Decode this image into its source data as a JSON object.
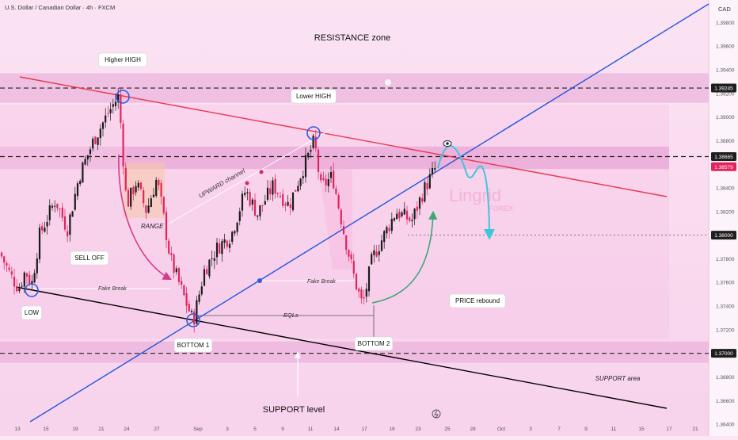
{
  "header": {
    "symbol_line": "U.S. Dollar / Canadian Dollar · 4h · FXCM",
    "currency_label": "CAD"
  },
  "watermark": {
    "line1": "Lingrid",
    "line2": "FOREX"
  },
  "colors": {
    "background": "#fbe6f4",
    "zone": "#e7a6d6",
    "candle_up": "#1a1a1a",
    "candle_down": "#e0245e",
    "trendline_red": "#e8384f",
    "trendline_blue": "#2255dd",
    "support_line": "#000000",
    "projection": "#3fc6d8",
    "rebound_arrow": "#3aa877",
    "price_tag": "#e0245e"
  },
  "chart_data": {
    "type": "candlestick",
    "title": "U.S. Dollar / Canadian Dollar · 4h · FXCM",
    "ylim": [
      1.363,
      1.3999
    ],
    "y_ticks": [
      1.398,
      1.396,
      1.394,
      1.392,
      1.39,
      1.388,
      1.386,
      1.384,
      1.382,
      1.38,
      1.378,
      1.376,
      1.374,
      1.372,
      1.37,
      1.368,
      1.366,
      1.364
    ],
    "x_ticks": [
      "13",
      "15",
      "19",
      "21",
      "24",
      "27",
      "Sep",
      "3",
      "5",
      "9",
      "11",
      "14",
      "17",
      "19",
      "23",
      "25",
      "28",
      "Oct",
      "3",
      "7",
      "9",
      "11",
      "15",
      "17",
      "21"
    ],
    "price_tags": [
      {
        "value": "1.39245",
        "style": "dark"
      },
      {
        "value": "1.38665",
        "style": "dark"
      },
      {
        "value": "1.38579",
        "style": "red"
      },
      {
        "value": "1.38000",
        "style": "dark"
      },
      {
        "value": "1.37000",
        "style": "dark"
      }
    ],
    "zones": [
      {
        "name": "resistance",
        "from": 1.3912,
        "to": 1.3937
      },
      {
        "name": "upper-band",
        "from": 1.3856,
        "to": 1.3875
      },
      {
        "name": "support",
        "from": 1.3692,
        "to": 1.371
      }
    ],
    "levels": [
      1.39245,
      1.38665,
      1.38,
      1.37
    ],
    "last_price": 1.38579,
    "annotations": [
      "RESISTANCE zone",
      "Higher HIGH",
      "Lower HIGH",
      "RANGE",
      "SELL OFF",
      "UPWARD channel",
      "Fake Break",
      "Fake Break",
      "LOW",
      "EQLs",
      "BOTTOM 1",
      "BOTTOM 2",
      "PRICE rebound",
      "SUPPORT level",
      "SUPPORT area"
    ],
    "path_anchors": [
      [
        0,
        1.3785
      ],
      [
        14,
        1.3765
      ],
      [
        24,
        1.3755
      ],
      [
        32,
        1.377
      ],
      [
        40,
        1.3758
      ],
      [
        50,
        1.38
      ],
      [
        70,
        1.383
      ],
      [
        85,
        1.3805
      ],
      [
        100,
        1.385
      ],
      [
        118,
        1.388
      ],
      [
        138,
        1.3905
      ],
      [
        150,
        1.3918
      ],
      [
        155,
        1.387
      ],
      [
        160,
        1.3825
      ],
      [
        172,
        1.3845
      ],
      [
        185,
        1.382
      ],
      [
        198,
        1.3848
      ],
      [
        205,
        1.3822
      ],
      [
        215,
        1.378
      ],
      [
        230,
        1.3752
      ],
      [
        244,
        1.3727
      ],
      [
        258,
        1.377
      ],
      [
        275,
        1.379
      ],
      [
        292,
        1.38
      ],
      [
        310,
        1.3838
      ],
      [
        325,
        1.3818
      ],
      [
        345,
        1.3842
      ],
      [
        365,
        1.3825
      ],
      [
        380,
        1.3852
      ],
      [
        390,
        1.3868
      ],
      [
        397,
        1.388
      ],
      [
        405,
        1.384
      ],
      [
        420,
        1.385
      ],
      [
        435,
        1.38
      ],
      [
        448,
        1.3762
      ],
      [
        458,
        1.374
      ],
      [
        470,
        1.378
      ],
      [
        485,
        1.38
      ],
      [
        500,
        1.382
      ],
      [
        520,
        1.3812
      ],
      [
        535,
        1.3838
      ],
      [
        551,
        1.3858
      ]
    ]
  }
}
